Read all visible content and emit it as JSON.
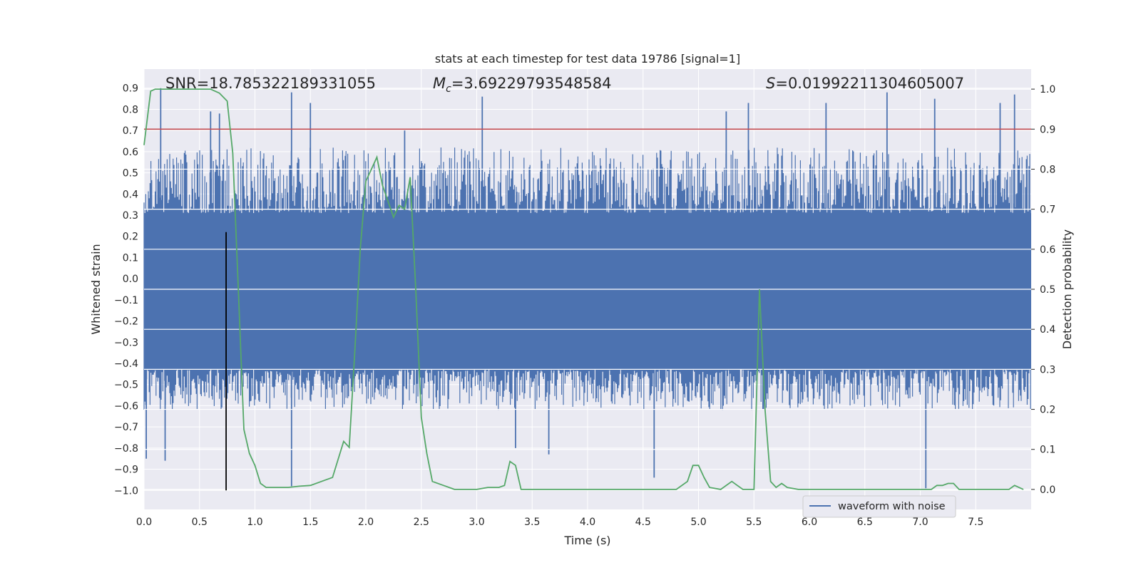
{
  "chart_data": {
    "type": "line",
    "title": "stats at each timestep for test data 19786 [signal=1]",
    "xlabel": "Time (s)",
    "ylabel_left": "Whitened strain",
    "ylabel_right": "Detection probability",
    "xlim": [
      0.0,
      8.0
    ],
    "ylim_left": [
      -1.09,
      0.99
    ],
    "ylim_right": [
      -0.05,
      1.05
    ],
    "x_ticks": [
      "0.0",
      "0.5",
      "1.0",
      "1.5",
      "2.0",
      "2.5",
      "3.0",
      "3.5",
      "4.0",
      "4.5",
      "5.0",
      "5.5",
      "6.0",
      "6.5",
      "7.0",
      "7.5"
    ],
    "y_left_ticks": [
      "0.9",
      "0.8",
      "0.7",
      "0.6",
      "0.5",
      "0.4",
      "0.3",
      "0.2",
      "0.1",
      "0.0",
      "−0.1",
      "−0.2",
      "−0.3",
      "−0.4",
      "−0.5",
      "−0.6",
      "−0.7",
      "−0.8",
      "−0.9",
      "−1.0"
    ],
    "y_right_ticks": [
      "1.0",
      "0.9",
      "0.8",
      "0.7",
      "0.6",
      "0.5",
      "0.4",
      "0.3",
      "0.2",
      "0.1",
      "0.0"
    ],
    "grid": true,
    "legend": {
      "position": "bottom-right",
      "entries": [
        "waveform with noise"
      ]
    },
    "annotations": {
      "snr": "SNR=18.785322189331055",
      "mc_symbol": "M",
      "mc_sub": "c",
      "mc_value": "=3.69229793548584",
      "s_symbol": "S",
      "s_value": "=0.01992211304605007"
    },
    "threshold": {
      "axis": "right",
      "value": 0.9,
      "color": "#c44e52"
    },
    "marker_line": {
      "x": 0.74,
      "y_from": -1.0,
      "y_to": 0.22,
      "color": "#000000"
    },
    "series": [
      {
        "name": "waveform with noise",
        "axis": "left",
        "color": "#4c72b0",
        "kind": "noise",
        "core_band": [
          -0.43,
          0.31
        ],
        "typical_range": [
          -0.62,
          0.62
        ],
        "peaks": [
          {
            "x": 0.02,
            "y": -0.85
          },
          {
            "x": 0.15,
            "y": 0.9
          },
          {
            "x": 0.19,
            "y": -0.86
          },
          {
            "x": 0.6,
            "y": 0.79
          },
          {
            "x": 0.68,
            "y": 0.78
          },
          {
            "x": 1.33,
            "y": -0.98
          },
          {
            "x": 1.33,
            "y": 0.88
          },
          {
            "x": 1.5,
            "y": 0.83
          },
          {
            "x": 2.35,
            "y": 0.7
          },
          {
            "x": 3.05,
            "y": 0.86
          },
          {
            "x": 3.35,
            "y": -0.8
          },
          {
            "x": 3.65,
            "y": -0.83
          },
          {
            "x": 4.6,
            "y": -0.94
          },
          {
            "x": 5.25,
            "y": 0.79
          },
          {
            "x": 5.45,
            "y": 0.83
          },
          {
            "x": 6.15,
            "y": 0.83
          },
          {
            "x": 6.7,
            "y": 0.88
          },
          {
            "x": 7.05,
            "y": -0.99
          },
          {
            "x": 7.13,
            "y": 0.85
          },
          {
            "x": 7.72,
            "y": 0.83
          },
          {
            "x": 7.85,
            "y": 0.87
          }
        ]
      },
      {
        "name": "detection probability",
        "axis": "right",
        "color": "#55a868",
        "x": [
          0.0,
          0.06,
          0.1,
          0.5,
          0.6,
          0.68,
          0.75,
          0.8,
          0.85,
          0.9,
          0.95,
          1.0,
          1.05,
          1.1,
          1.2,
          1.3,
          1.4,
          1.5,
          1.6,
          1.7,
          1.8,
          1.85,
          1.9,
          1.95,
          2.0,
          2.05,
          2.1,
          2.15,
          2.2,
          2.25,
          2.3,
          2.35,
          2.4,
          2.45,
          2.5,
          2.55,
          2.6,
          2.7,
          2.8,
          2.9,
          3.0,
          3.1,
          3.2,
          3.25,
          3.3,
          3.35,
          3.4,
          3.5,
          3.6,
          3.7,
          3.8,
          4.0,
          4.2,
          4.4,
          4.6,
          4.8,
          4.9,
          4.95,
          5.0,
          5.05,
          5.1,
          5.2,
          5.3,
          5.35,
          5.4,
          5.5,
          5.52,
          5.55,
          5.6,
          5.65,
          5.7,
          5.75,
          5.8,
          5.9,
          6.0,
          6.2,
          6.4,
          6.6,
          6.8,
          7.0,
          7.1,
          7.15,
          7.2,
          7.25,
          7.3,
          7.35,
          7.4,
          7.6,
          7.8,
          7.85,
          7.93
        ],
        "values": [
          0.86,
          0.995,
          1.0,
          1.0,
          1.0,
          0.99,
          0.97,
          0.84,
          0.5,
          0.15,
          0.09,
          0.06,
          0.015,
          0.005,
          0.005,
          0.005,
          0.008,
          0.01,
          0.02,
          0.03,
          0.12,
          0.105,
          0.34,
          0.6,
          0.77,
          0.8,
          0.83,
          0.76,
          0.72,
          0.68,
          0.71,
          0.7,
          0.78,
          0.5,
          0.18,
          0.09,
          0.02,
          0.01,
          0.0,
          0.0,
          0.0,
          0.005,
          0.005,
          0.01,
          0.07,
          0.06,
          0.0,
          0.0,
          0.0,
          0.0,
          0.0,
          0.0,
          0.0,
          0.0,
          0.0,
          0.0,
          0.02,
          0.06,
          0.06,
          0.03,
          0.005,
          0.0,
          0.02,
          0.01,
          0.0,
          0.0,
          0.2,
          0.5,
          0.2,
          0.02,
          0.005,
          0.015,
          0.005,
          0.0,
          0.0,
          0.0,
          0.0,
          0.0,
          0.0,
          0.0,
          0.0,
          0.01,
          0.01,
          0.015,
          0.015,
          0.0,
          0.0,
          0.0,
          0.0,
          0.01,
          0.0
        ]
      }
    ]
  }
}
